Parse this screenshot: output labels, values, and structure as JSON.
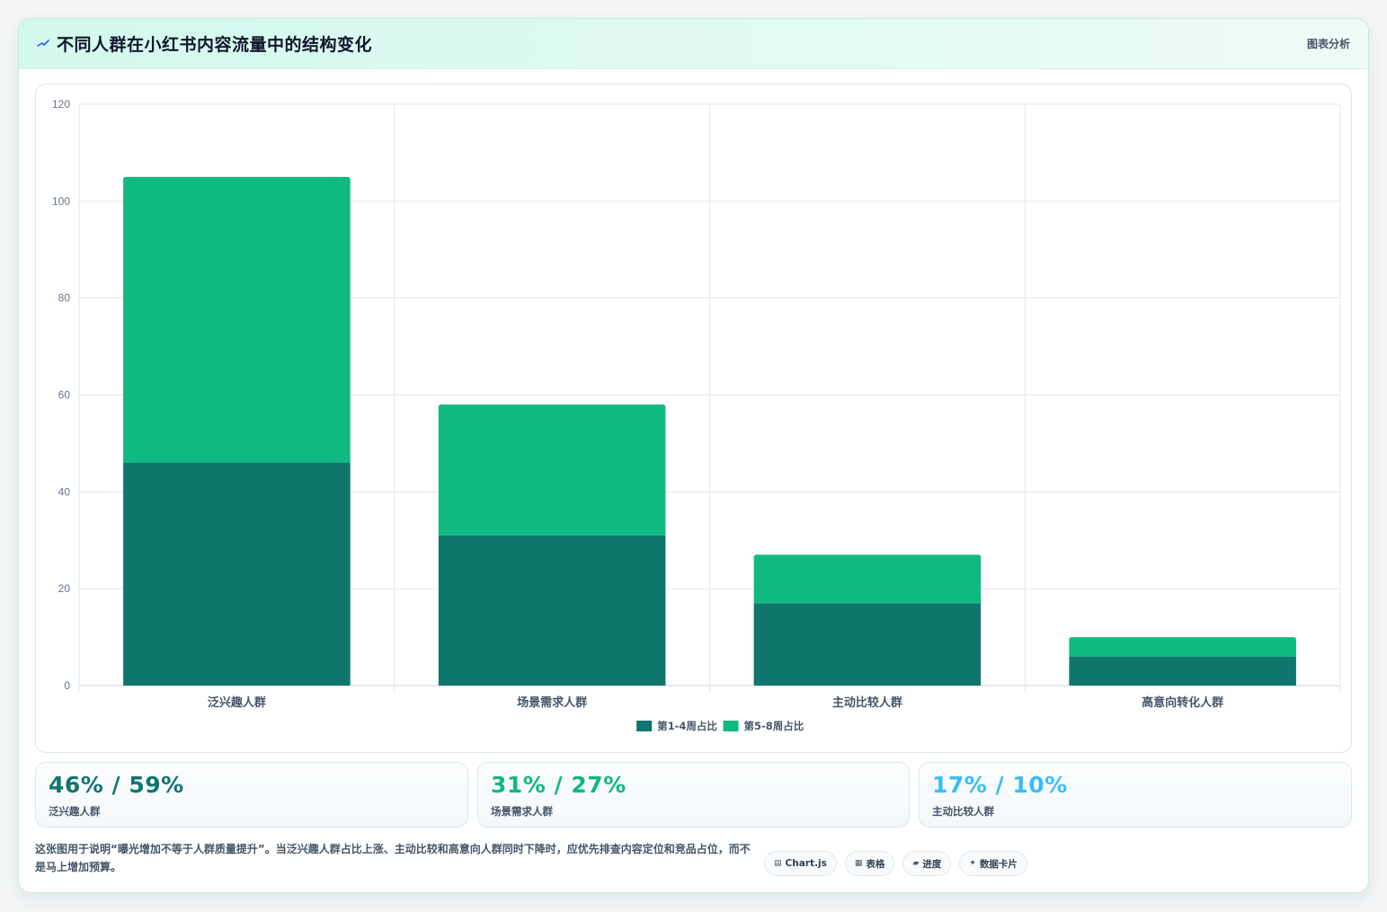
{
  "header": {
    "icon": "trend-icon",
    "title": "不同人群在小红书内容流量中的结构变化",
    "tag": "图表分析"
  },
  "chart_data": {
    "type": "bar",
    "stacked": true,
    "categories": [
      "泛兴趣人群",
      "场景需求人群",
      "主动比较人群",
      "高意向转化人群"
    ],
    "series": [
      {
        "name": "第1-4周占比",
        "values": [
          46,
          31,
          17,
          6
        ],
        "color": "#0f766e"
      },
      {
        "name": "第5-8周占比",
        "values": [
          59,
          27,
          10,
          4
        ],
        "color": "#10b981"
      }
    ],
    "ylim": [
      0,
      120
    ],
    "yticks": [
      0,
      20,
      40,
      60,
      80,
      100,
      120
    ],
    "grid": true,
    "legend_position": "bottom"
  },
  "stats": [
    {
      "value": "46% / 59%",
      "label": "泛兴趣人群",
      "color": "#0f766e"
    },
    {
      "value": "31% / 27%",
      "label": "场景需求人群",
      "color": "#10b981"
    },
    {
      "value": "17% / 10%",
      "label": "主动比较人群",
      "color": "#38bdf8"
    }
  ],
  "note": "这张图用于说明“曝光增加不等于人群质量提升”。当泛兴趣人群占比上涨、主动比较和高意向人群同时下降时，应优先排查内容定位和竞品占位，而不是马上增加预算。",
  "chips": [
    {
      "icon": "chart-icon",
      "glyph": "▤",
      "label": "Chart.js"
    },
    {
      "icon": "table-icon",
      "glyph": "▦",
      "label": "表格"
    },
    {
      "icon": "progress-icon",
      "glyph": "▰",
      "label": "进度"
    },
    {
      "icon": "sparkle-icon",
      "glyph": "✦",
      "label": "数据卡片"
    }
  ]
}
